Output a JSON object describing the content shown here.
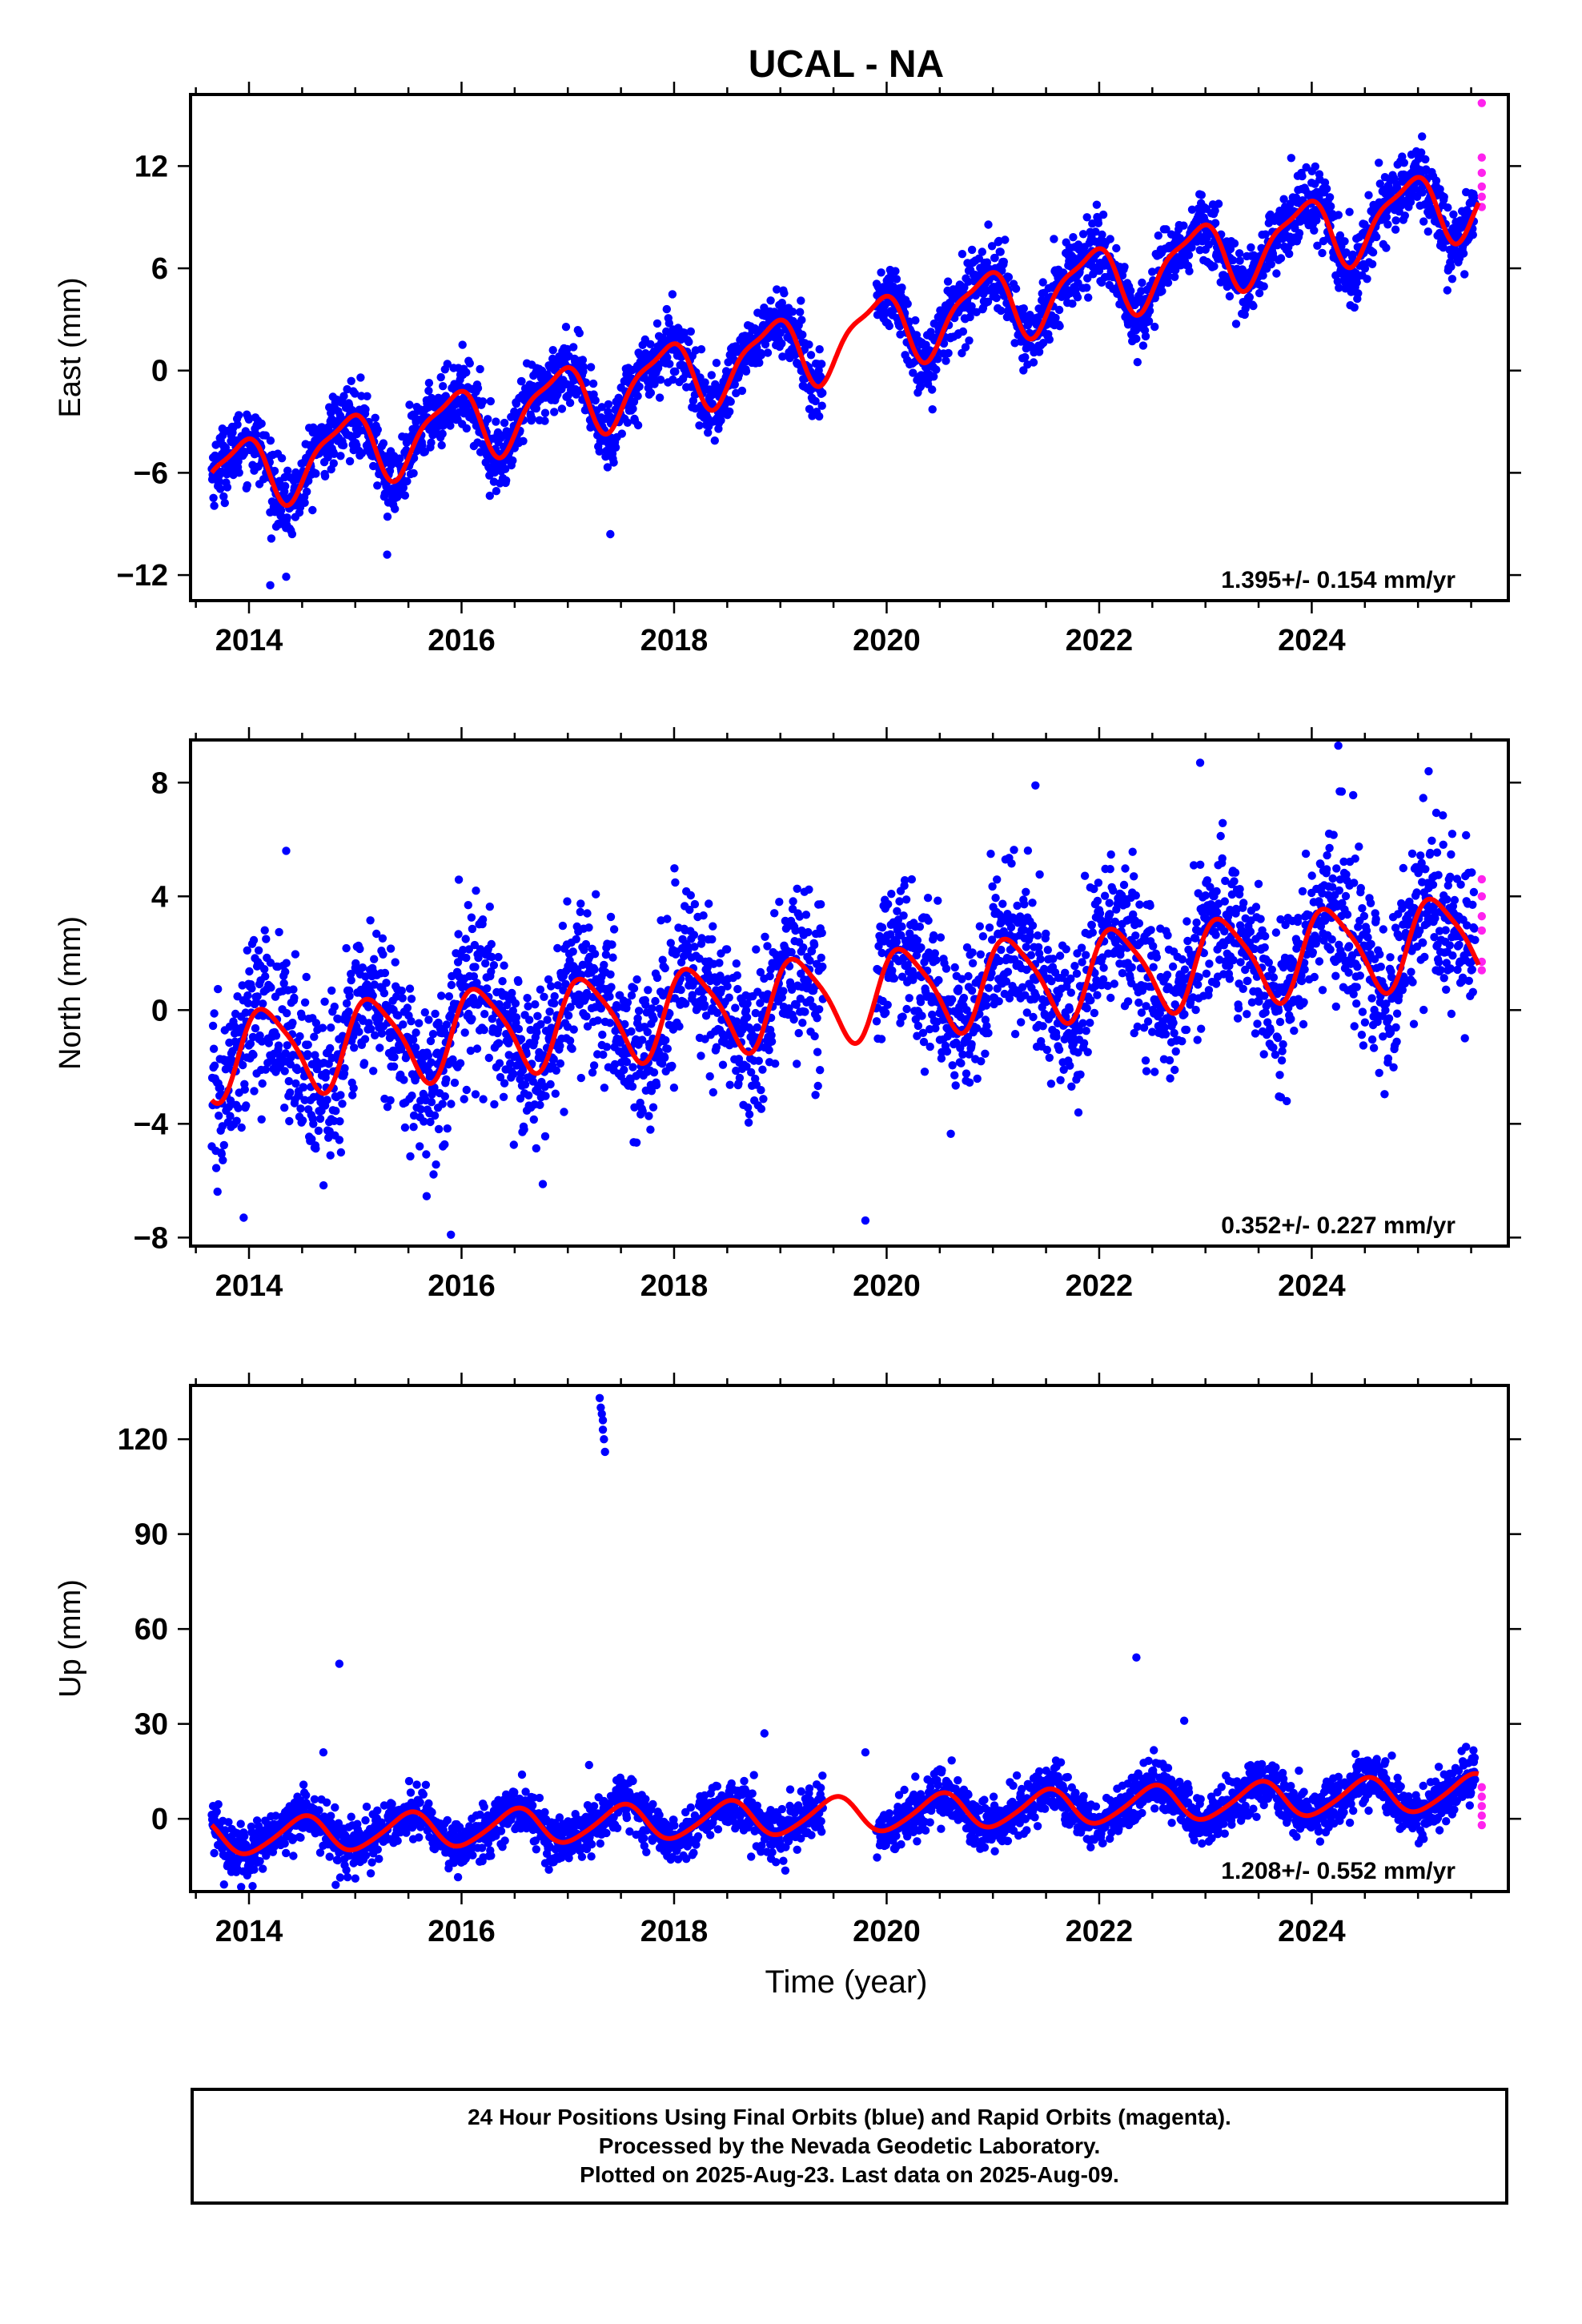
{
  "title": "UCAL - NA",
  "xlabel": "Time (year)",
  "footer": [
    "24 Hour Positions Using Final Orbits (blue) and Rapid Orbits (magenta).",
    "Processed by the Nevada Geodetic Laboratory.",
    "Plotted on 2025-Aug-23. Last data on 2025-Aug-09."
  ],
  "colors": {
    "final": "#0000ff",
    "rapid": "#ff22ee",
    "model": "#ff0000",
    "axis": "#000000"
  },
  "chart_data": [
    {
      "type": "scatter",
      "ylabel": "East (mm)",
      "rate_label": "1.395+/- 0.154 mm/yr",
      "xlim": [
        2013.45,
        2025.85
      ],
      "ylim": [
        -13.5,
        16.2
      ],
      "xticks": [
        2014,
        2016,
        2018,
        2020,
        2022,
        2024
      ],
      "yticks": [
        -12,
        -6,
        0,
        6,
        12
      ],
      "data_span": [
        2013.65,
        2025.57
      ],
      "gap": [
        2019.4,
        2019.9
      ],
      "model": {
        "offset": -6.4,
        "trend": 1.395,
        "annual_amp": 2.0,
        "annual_phase": 2.2,
        "semi_amp": 0.6,
        "semi_phase": 0.5
      },
      "scatter_sd": 1.0,
      "final_points": [
        {
          "x": 2014.2,
          "y": -12.6
        },
        {
          "x": 2014.35,
          "y": -12.1
        },
        {
          "x": 2015.3,
          "y": -10.8
        },
        {
          "x": 2017.4,
          "y": -9.6
        },
        {
          "x": 2023.8,
          "y": 9.8
        },
        {
          "x": 2024.85,
          "y": 11.2
        }
      ],
      "rapid_points": [
        {
          "x": 2025.6,
          "y": 15.7
        },
        {
          "x": 2025.6,
          "y": 12.5
        },
        {
          "x": 2025.6,
          "y": 11.6
        },
        {
          "x": 2025.6,
          "y": 10.8
        },
        {
          "x": 2025.6,
          "y": 10.2
        },
        {
          "x": 2025.6,
          "y": 9.6
        }
      ]
    },
    {
      "type": "scatter",
      "ylabel": "North (mm)",
      "rate_label": "0.352+/- 0.227 mm/yr",
      "xlim": [
        2013.45,
        2025.85
      ],
      "ylim": [
        -8.3,
        9.5
      ],
      "xticks": [
        2014,
        2016,
        2018,
        2020,
        2022,
        2024
      ],
      "yticks": [
        -8,
        -4,
        0,
        4,
        8
      ],
      "data_span": [
        2013.65,
        2025.57
      ],
      "gap": [
        2019.4,
        2019.9
      ],
      "model": {
        "offset": -1.6,
        "trend": 0.352,
        "annual_amp": 1.5,
        "annual_phase": 0.5,
        "semi_amp": 0.3,
        "semi_phase": 1.5
      },
      "scatter_sd": 1.4,
      "final_points": [
        {
          "x": 2014.35,
          "y": 5.6
        },
        {
          "x": 2015.9,
          "y": -7.9
        },
        {
          "x": 2013.95,
          "y": -7.3
        },
        {
          "x": 2021.4,
          "y": 7.9
        },
        {
          "x": 2022.95,
          "y": 8.7
        },
        {
          "x": 2024.25,
          "y": 9.3
        },
        {
          "x": 2025.1,
          "y": 8.4
        },
        {
          "x": 2019.8,
          "y": -7.4
        }
      ],
      "rapid_points": [
        {
          "x": 2025.6,
          "y": 4.6
        },
        {
          "x": 2025.6,
          "y": 4.0
        },
        {
          "x": 2025.6,
          "y": 3.3
        },
        {
          "x": 2025.6,
          "y": 2.8
        },
        {
          "x": 2025.6,
          "y": 1.7
        },
        {
          "x": 2025.6,
          "y": 1.4
        }
      ]
    },
    {
      "type": "scatter",
      "ylabel": "Up (mm)",
      "rate_label": "1.208+/- 0.552 mm/yr",
      "xlim": [
        2013.45,
        2025.85
      ],
      "ylim": [
        -23,
        137
      ],
      "xticks": [
        2014,
        2016,
        2018,
        2020,
        2022,
        2024
      ],
      "yticks": [
        0,
        30,
        60,
        90,
        120
      ],
      "data_span": [
        2013.65,
        2025.57
      ],
      "gap": [
        2019.4,
        2019.9
      ],
      "model": {
        "offset": -6.0,
        "trend": 1.208,
        "annual_amp": 5.5,
        "annual_phase": -1.6,
        "semi_amp": 0.8,
        "semi_phase": 0.3
      },
      "scatter_sd": 4.0,
      "final_points": [
        {
          "x": 2017.3,
          "y": 133
        },
        {
          "x": 2017.31,
          "y": 130
        },
        {
          "x": 2017.32,
          "y": 128
        },
        {
          "x": 2017.33,
          "y": 126
        },
        {
          "x": 2017.33,
          "y": 123
        },
        {
          "x": 2017.34,
          "y": 120
        },
        {
          "x": 2017.35,
          "y": 116
        },
        {
          "x": 2014.85,
          "y": 49
        },
        {
          "x": 2022.35,
          "y": 51
        },
        {
          "x": 2022.8,
          "y": 31
        },
        {
          "x": 2018.85,
          "y": 27
        },
        {
          "x": 2014.7,
          "y": 21
        },
        {
          "x": 2019.8,
          "y": 21
        },
        {
          "x": 2017.2,
          "y": 17
        }
      ],
      "rapid_points": [
        {
          "x": 2025.6,
          "y": 10
        },
        {
          "x": 2025.6,
          "y": 7
        },
        {
          "x": 2025.6,
          "y": 4
        },
        {
          "x": 2025.6,
          "y": 1
        },
        {
          "x": 2025.6,
          "y": -2
        }
      ]
    }
  ]
}
